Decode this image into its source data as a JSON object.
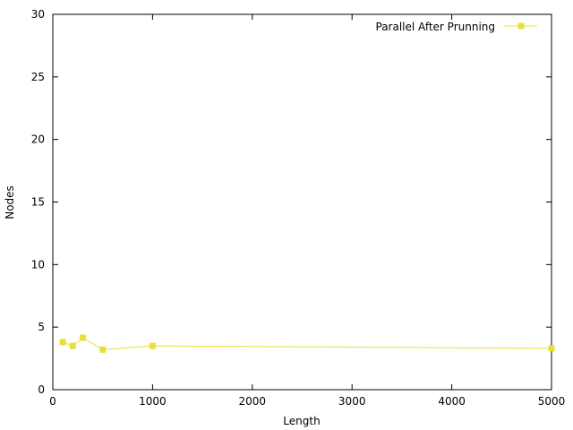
{
  "chart_data": {
    "type": "line",
    "title": "",
    "xlabel": "Length",
    "ylabel": "Nodes",
    "xlim": [
      0,
      5000
    ],
    "ylim": [
      0,
      30
    ],
    "xticks": [
      0,
      1000,
      2000,
      3000,
      4000,
      5000
    ],
    "yticks": [
      0,
      5,
      10,
      15,
      20,
      25,
      30
    ],
    "grid": false,
    "legend_position": "top-right",
    "series": [
      {
        "name": "Parallel After Prunning",
        "color": "#e8e03a",
        "marker": "square",
        "x": [
          100,
          200,
          300,
          500,
          1000,
          5000
        ],
        "y": [
          3.8,
          3.5,
          4.15,
          3.2,
          3.5,
          3.3
        ]
      }
    ]
  }
}
